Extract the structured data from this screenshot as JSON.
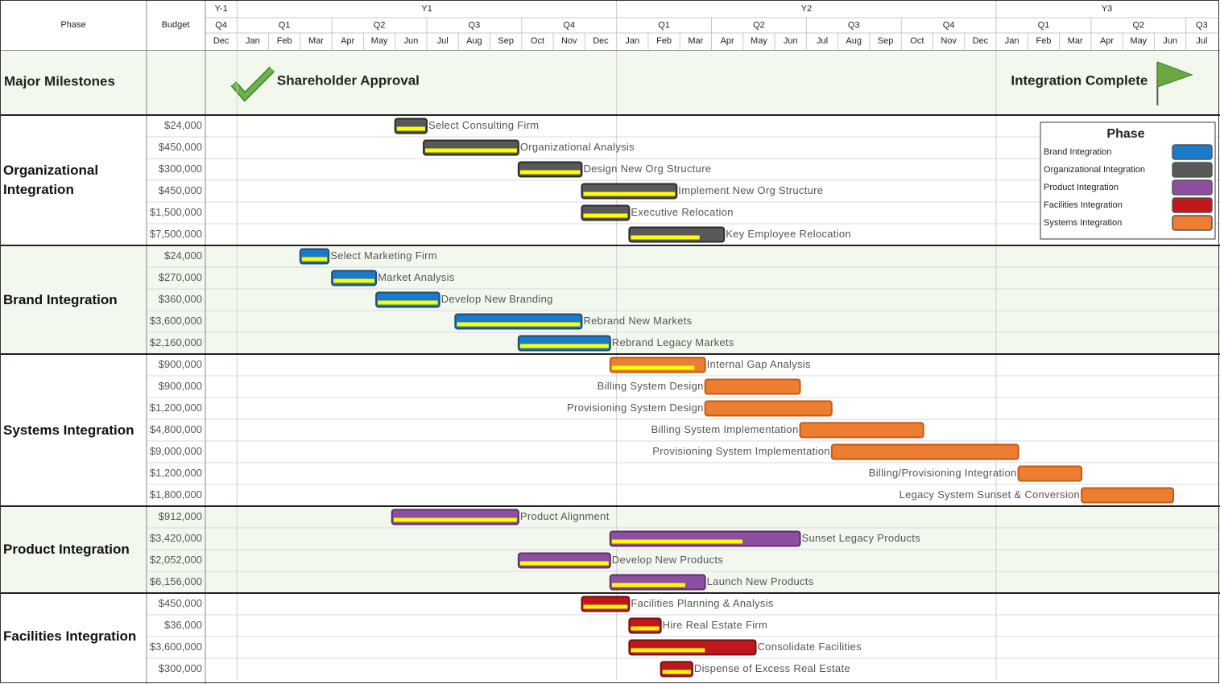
{
  "chart_data": {
    "type": "gantt",
    "columns": [
      "Phase",
      "Budget"
    ],
    "xlim": [
      0,
      32
    ],
    "years": [
      {
        "label": "Y-1",
        "start": 0,
        "end": 1
      },
      {
        "label": "Y1",
        "start": 1,
        "end": 13
      },
      {
        "label": "Y2",
        "start": 13,
        "end": 25
      },
      {
        "label": "Y3",
        "start": 25,
        "end": 32
      }
    ],
    "quarters": [
      {
        "label": "Q4",
        "start": 0,
        "end": 1
      },
      {
        "label": "Q1",
        "start": 1,
        "end": 4
      },
      {
        "label": "Q2",
        "start": 4,
        "end": 7
      },
      {
        "label": "Q3",
        "start": 7,
        "end": 10
      },
      {
        "label": "Q4",
        "start": 10,
        "end": 13
      },
      {
        "label": "Q1",
        "start": 13,
        "end": 16
      },
      {
        "label": "Q2",
        "start": 16,
        "end": 19
      },
      {
        "label": "Q3",
        "start": 19,
        "end": 22
      },
      {
        "label": "Q4",
        "start": 22,
        "end": 25
      },
      {
        "label": "Q1",
        "start": 25,
        "end": 28
      },
      {
        "label": "Q2",
        "start": 28,
        "end": 31
      },
      {
        "label": "Q3",
        "start": 31,
        "end": 32
      }
    ],
    "months": [
      "Dec",
      "Jan",
      "Feb",
      "Mar",
      "Apr",
      "May",
      "Jun",
      "Jul",
      "Aug",
      "Sep",
      "Oct",
      "Nov",
      "Dec",
      "Jan",
      "Feb",
      "Mar",
      "Apr",
      "May",
      "Jun",
      "Jul",
      "Aug",
      "Sep",
      "Oct",
      "Nov",
      "Dec",
      "Jan",
      "Feb",
      "Mar",
      "Apr",
      "May",
      "Jun",
      "Jul"
    ],
    "milestones": {
      "title": "Major Milestones",
      "items": [
        {
          "name": "Shareholder Approval",
          "at": 1.5,
          "icon": "check",
          "label_side": "right"
        },
        {
          "name": "Integration Complete",
          "at": 30.1,
          "icon": "flag",
          "label_side": "left"
        }
      ]
    },
    "phases": [
      {
        "name": "Organizational Integration",
        "color": "#595959",
        "stroke": "#2b2b2b",
        "band": "#ffffff",
        "tasks": [
          {
            "name": "Select Consulting Firm",
            "budget": "$24,000",
            "start": 6.0,
            "end": 7.0,
            "progress": 100,
            "label_side": "right"
          },
          {
            "name": "Organizational Analysis",
            "budget": "$450,000",
            "start": 6.9,
            "end": 9.9,
            "progress": 100,
            "label_side": "right"
          },
          {
            "name": "Design New Org Structure",
            "budget": "$300,000",
            "start": 9.9,
            "end": 11.9,
            "progress": 100,
            "label_side": "right"
          },
          {
            "name": "Implement New Org Structure",
            "budget": "$450,000",
            "start": 11.9,
            "end": 14.9,
            "progress": 100,
            "label_side": "right"
          },
          {
            "name": "Executive Relocation",
            "budget": "$1,500,000",
            "start": 11.9,
            "end": 13.4,
            "progress": 100,
            "label_side": "right"
          },
          {
            "name": "Key Employee Relocation",
            "budget": "$7,500,000",
            "start": 13.4,
            "end": 16.4,
            "progress": 75,
            "label_side": "right"
          }
        ]
      },
      {
        "name": "Brand Integration",
        "color": "#1a7bcb",
        "stroke": "#1f4e79",
        "band": "#f2f8ee",
        "tasks": [
          {
            "name": "Select Marketing Firm",
            "budget": "$24,000",
            "start": 3.0,
            "end": 3.9,
            "progress": 100,
            "label_side": "right"
          },
          {
            "name": "Market Analysis",
            "budget": "$270,000",
            "start": 4.0,
            "end": 5.4,
            "progress": 100,
            "label_side": "right"
          },
          {
            "name": "Develop New Branding",
            "budget": "$360,000",
            "start": 5.4,
            "end": 7.4,
            "progress": 100,
            "label_side": "right"
          },
          {
            "name": "Rebrand New Markets",
            "budget": "$3,600,000",
            "start": 7.9,
            "end": 11.9,
            "progress": 100,
            "label_side": "right"
          },
          {
            "name": "Rebrand Legacy Markets",
            "budget": "$2,160,000",
            "start": 9.9,
            "end": 12.8,
            "progress": 100,
            "label_side": "right"
          }
        ]
      },
      {
        "name": "Systems Integration",
        "color": "#ed7d31",
        "stroke": "#c55a11",
        "band": "#ffffff",
        "tasks": [
          {
            "name": "Internal Gap Analysis",
            "budget": "$900,000",
            "start": 12.8,
            "end": 15.8,
            "progress": 90,
            "label_side": "right"
          },
          {
            "name": "Billing System Design",
            "budget": "$900,000",
            "start": 15.8,
            "end": 18.8,
            "progress": 0,
            "label_side": "left"
          },
          {
            "name": "Provisioning System Design",
            "budget": "$1,200,000",
            "start": 15.8,
            "end": 19.8,
            "progress": 0,
            "label_side": "left"
          },
          {
            "name": "Billing System Implementation",
            "budget": "$4,800,000",
            "start": 18.8,
            "end": 22.7,
            "progress": 0,
            "label_side": "left"
          },
          {
            "name": "Provisioning System Implementation",
            "budget": "$9,000,000",
            "start": 19.8,
            "end": 25.7,
            "progress": 0,
            "label_side": "left"
          },
          {
            "name": "Billing/Provisioning Integration",
            "budget": "$1,200,000",
            "start": 25.7,
            "end": 27.7,
            "progress": 0,
            "label_side": "left"
          },
          {
            "name": "Legacy System Sunset & Conversion",
            "budget": "$1,800,000",
            "start": 27.7,
            "end": 30.6,
            "progress": 0,
            "label_side": "left"
          }
        ]
      },
      {
        "name": "Product Integration",
        "color": "#8e4fa0",
        "stroke": "#5e2f70",
        "band": "#f2f8ee",
        "tasks": [
          {
            "name": "Product Alignment",
            "budget": "$912,000",
            "start": 5.9,
            "end": 9.9,
            "progress": 100,
            "label_side": "right"
          },
          {
            "name": "Sunset Legacy Products",
            "budget": "$3,420,000",
            "start": 12.8,
            "end": 18.8,
            "progress": 70,
            "label_side": "right"
          },
          {
            "name": "Develop New Products",
            "budget": "$2,052,000",
            "start": 9.9,
            "end": 12.8,
            "progress": 100,
            "label_side": "right"
          },
          {
            "name": "Launch New Products",
            "budget": "$6,156,000",
            "start": 12.8,
            "end": 15.8,
            "progress": 80,
            "label_side": "right"
          }
        ]
      },
      {
        "name": "Facilities Integration",
        "color": "#c0171c",
        "stroke": "#7a0e12",
        "band": "#ffffff",
        "tasks": [
          {
            "name": "Facilities Planning & Analysis",
            "budget": "$450,000",
            "start": 11.9,
            "end": 13.4,
            "progress": 100,
            "label_side": "right"
          },
          {
            "name": "Hire Real Estate Firm",
            "budget": "$36,000",
            "start": 13.4,
            "end": 14.4,
            "progress": 100,
            "label_side": "right"
          },
          {
            "name": "Consolidate Facilities",
            "budget": "$3,600,000",
            "start": 13.4,
            "end": 17.4,
            "progress": 60,
            "label_side": "right"
          },
          {
            "name": "Dispense of Excess Real Estate",
            "budget": "$300,000",
            "start": 14.4,
            "end": 15.4,
            "progress": 100,
            "label_side": "right"
          }
        ]
      }
    ],
    "progress_color": "#ffff00",
    "legend": {
      "title": "Phase",
      "items": [
        {
          "name": "Brand Integration",
          "color": "#1a7bcb"
        },
        {
          "name": "Organizational Integration",
          "color": "#595959"
        },
        {
          "name": "Product Integration",
          "color": "#8e4fa0"
        },
        {
          "name": "Facilities Integration",
          "color": "#c0171c"
        },
        {
          "name": "Systems Integration",
          "color": "#ed7d31"
        }
      ]
    }
  }
}
